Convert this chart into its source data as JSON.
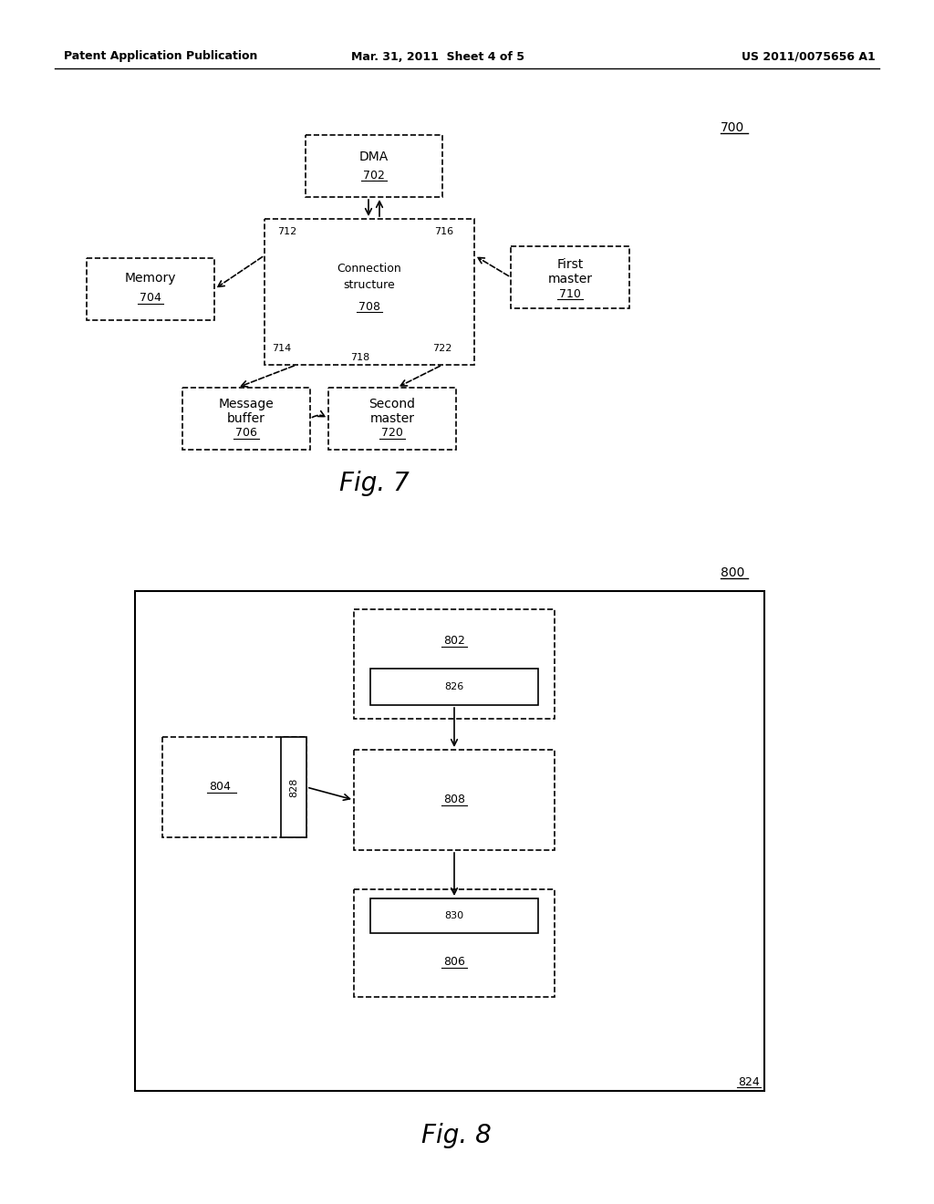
{
  "bg_color": "#ffffff",
  "header_left": "Patent Application Publication",
  "header_mid": "Mar. 31, 2011  Sheet 4 of 5",
  "header_right": "US 2011/0075656 A1",
  "fig7_label": "700",
  "fig7_caption": "Fig. 7",
  "fig8_label": "800",
  "fig8_caption": "Fig. 8",
  "text_color": "#000000",
  "box_color": "#000000",
  "dashed_color": "#555555"
}
